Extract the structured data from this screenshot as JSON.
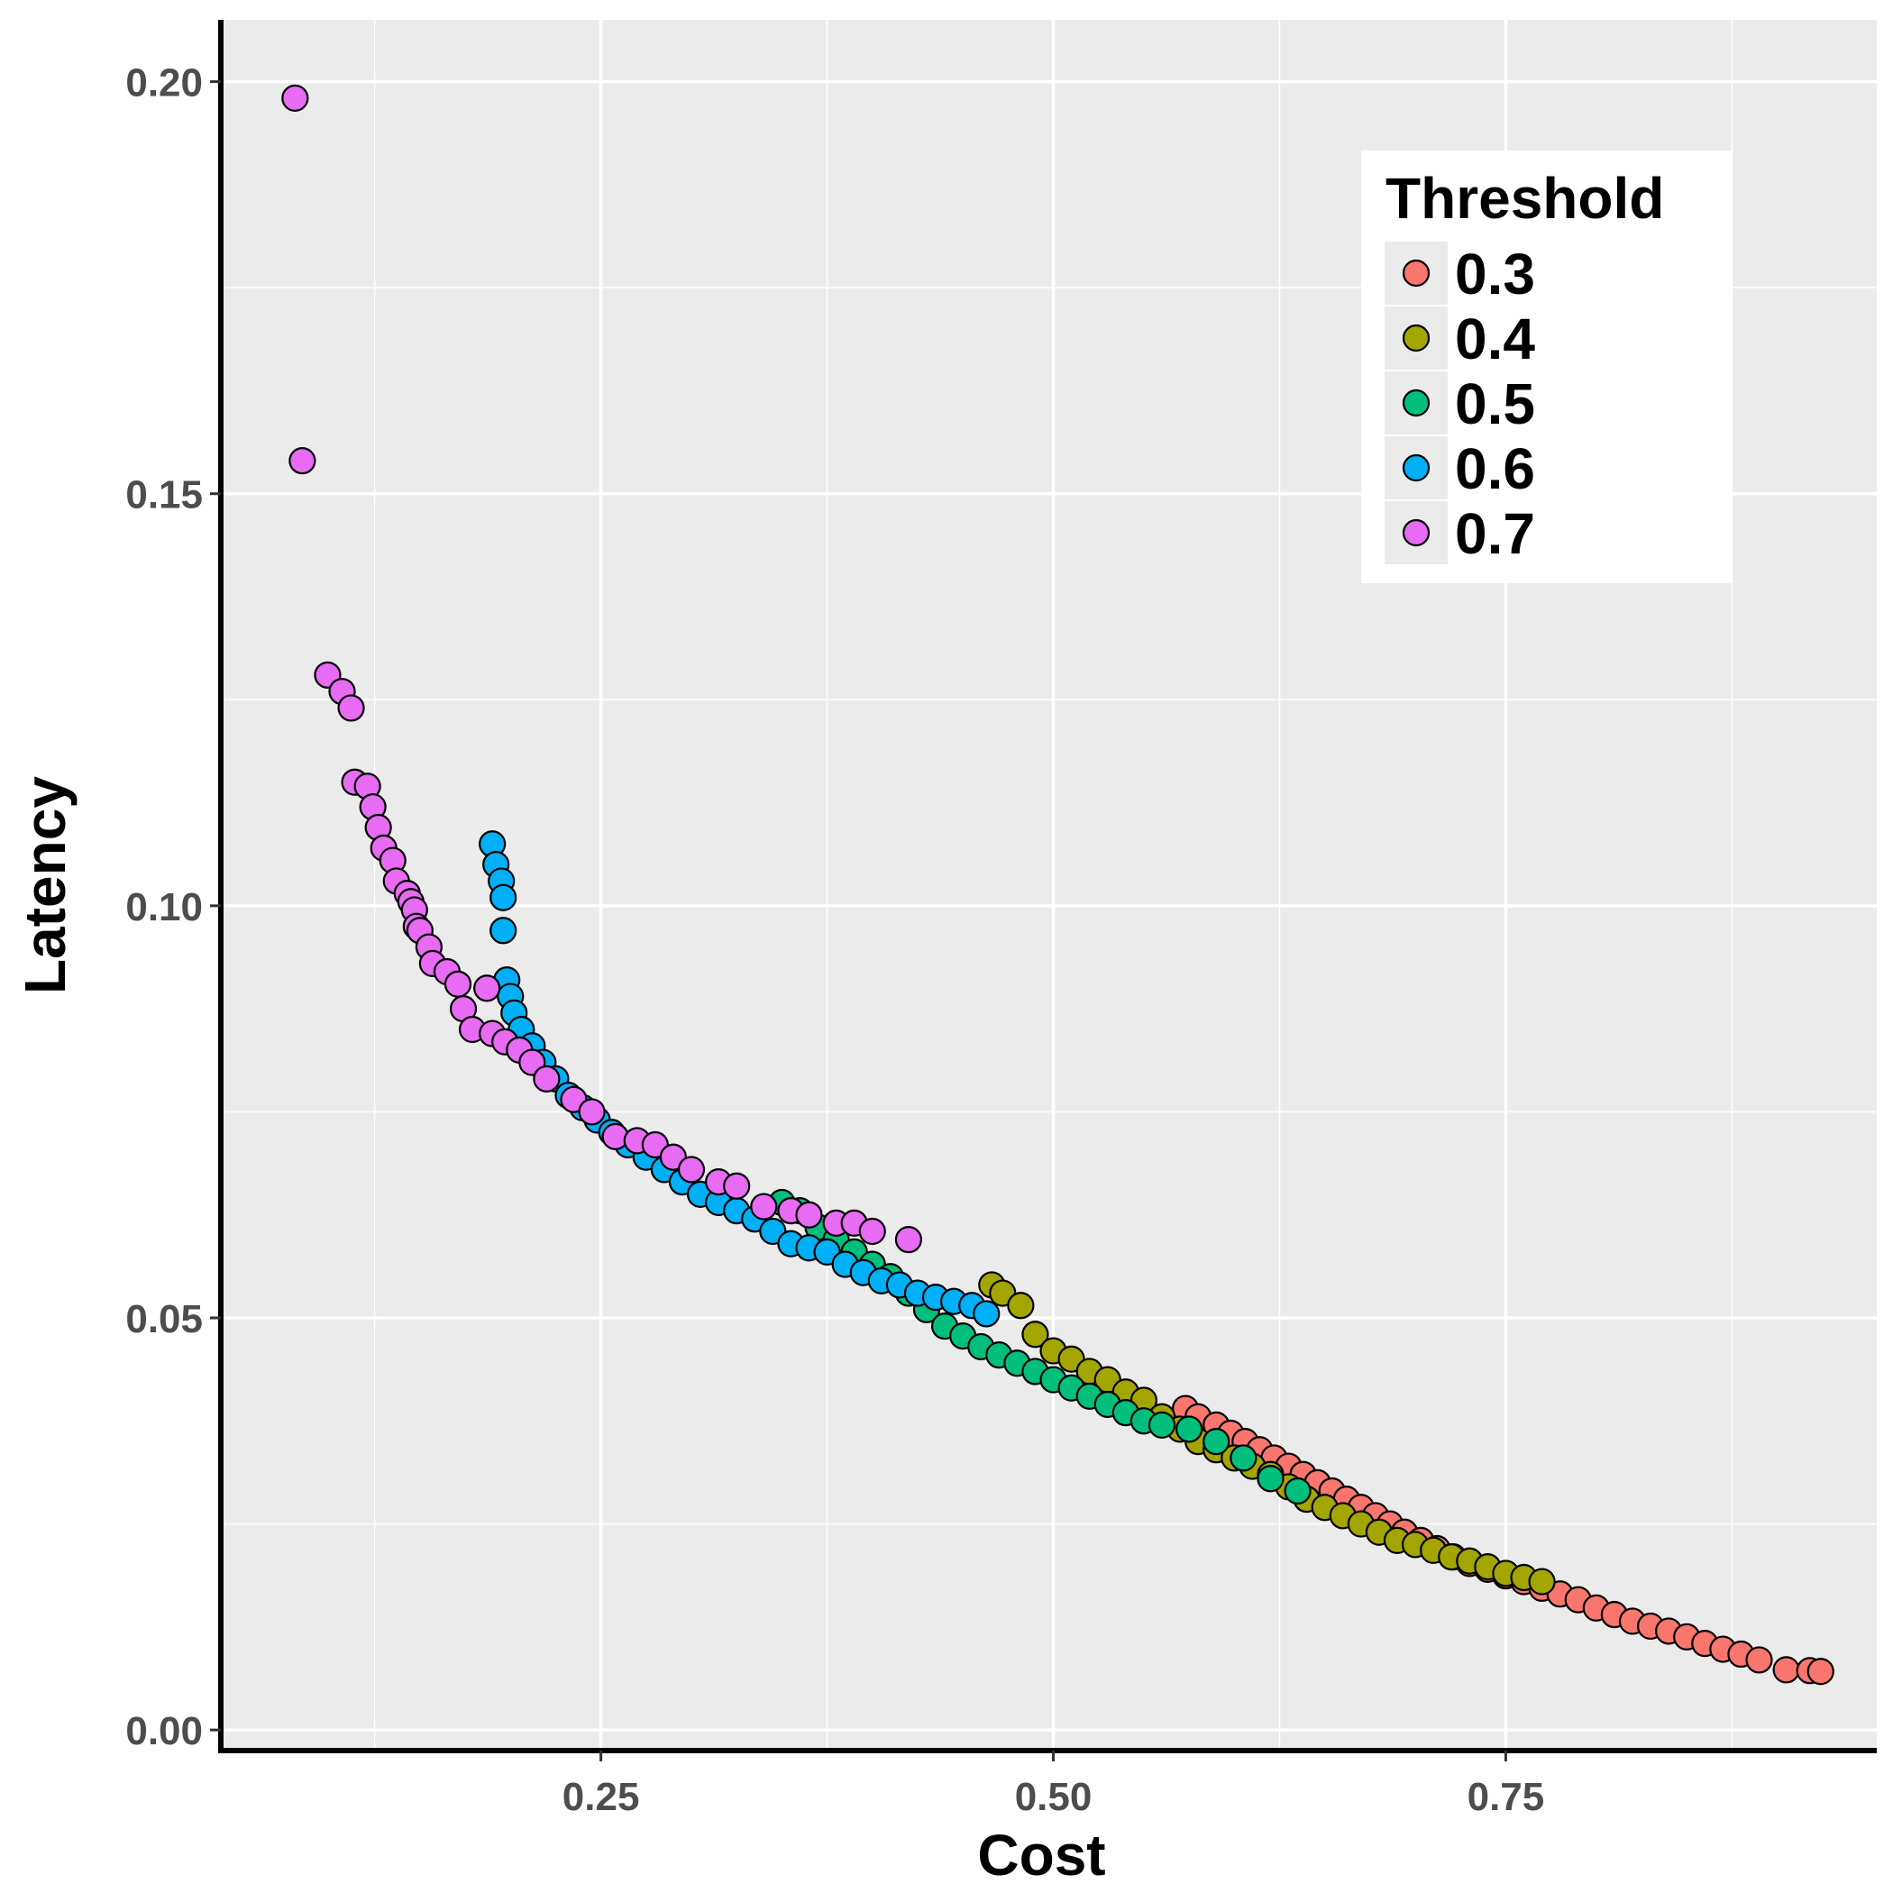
{
  "chart_data": {
    "type": "scatter",
    "title": "",
    "xlabel": "Cost",
    "ylabel": "Latency",
    "xlim": [
      0.04,
      0.955
    ],
    "ylim": [
      -0.0025,
      0.2075
    ],
    "x_ticks": [
      "0.25",
      "0.50",
      "0.75"
    ],
    "x_tick_values": [
      0.25,
      0.5,
      0.75
    ],
    "y_ticks": [
      "0.00",
      "0.05",
      "0.10",
      "0.15",
      "0.20"
    ],
    "y_tick_values": [
      0.0,
      0.05,
      0.1,
      0.15,
      0.2
    ],
    "grid": true,
    "legend": {
      "title": "Threshold",
      "position": "top-right"
    },
    "colors": {
      "panel": "#ebebeb",
      "grid": "#ffffff",
      "point_stroke": "#000000"
    },
    "series": [
      {
        "name": "0.3",
        "color": "#F8766D",
        "points": [
          [
            0.573,
            0.039
          ],
          [
            0.58,
            0.038
          ],
          [
            0.59,
            0.037
          ],
          [
            0.598,
            0.036
          ],
          [
            0.606,
            0.035
          ],
          [
            0.614,
            0.034
          ],
          [
            0.622,
            0.033
          ],
          [
            0.63,
            0.032
          ],
          [
            0.638,
            0.031
          ],
          [
            0.646,
            0.03
          ],
          [
            0.654,
            0.029
          ],
          [
            0.662,
            0.028
          ],
          [
            0.67,
            0.027
          ],
          [
            0.678,
            0.026
          ],
          [
            0.686,
            0.025
          ],
          [
            0.694,
            0.024
          ],
          [
            0.703,
            0.023
          ],
          [
            0.712,
            0.022
          ],
          [
            0.721,
            0.021
          ],
          [
            0.73,
            0.0202
          ],
          [
            0.74,
            0.0195
          ],
          [
            0.75,
            0.0187
          ],
          [
            0.76,
            0.018
          ],
          [
            0.77,
            0.0172
          ],
          [
            0.78,
            0.0165
          ],
          [
            0.79,
            0.0158
          ],
          [
            0.8,
            0.0148
          ],
          [
            0.81,
            0.014
          ],
          [
            0.82,
            0.0132
          ],
          [
            0.83,
            0.0126
          ],
          [
            0.84,
            0.012
          ],
          [
            0.85,
            0.0113
          ],
          [
            0.86,
            0.0105
          ],
          [
            0.87,
            0.0098
          ],
          [
            0.88,
            0.0092
          ],
          [
            0.89,
            0.0085
          ],
          [
            0.905,
            0.0073
          ],
          [
            0.918,
            0.0072
          ],
          [
            0.924,
            0.0071
          ]
        ]
      },
      {
        "name": "0.4",
        "color": "#A3A500",
        "points": [
          [
            0.466,
            0.054
          ],
          [
            0.472,
            0.053
          ],
          [
            0.482,
            0.0515
          ],
          [
            0.49,
            0.048
          ],
          [
            0.5,
            0.046
          ],
          [
            0.51,
            0.045
          ],
          [
            0.52,
            0.0435
          ],
          [
            0.53,
            0.0425
          ],
          [
            0.54,
            0.041
          ],
          [
            0.55,
            0.04
          ],
          [
            0.56,
            0.038
          ],
          [
            0.57,
            0.0365
          ],
          [
            0.58,
            0.035
          ],
          [
            0.59,
            0.034
          ],
          [
            0.6,
            0.033
          ],
          [
            0.61,
            0.032
          ],
          [
            0.62,
            0.031
          ],
          [
            0.63,
            0.0295
          ],
          [
            0.64,
            0.028
          ],
          [
            0.65,
            0.027
          ],
          [
            0.66,
            0.026
          ],
          [
            0.67,
            0.025
          ],
          [
            0.68,
            0.024
          ],
          [
            0.69,
            0.023
          ],
          [
            0.7,
            0.0225
          ],
          [
            0.71,
            0.0218
          ],
          [
            0.72,
            0.021
          ],
          [
            0.73,
            0.0205
          ],
          [
            0.74,
            0.0198
          ],
          [
            0.75,
            0.019
          ],
          [
            0.76,
            0.0185
          ],
          [
            0.77,
            0.018
          ]
        ]
      },
      {
        "name": "0.5",
        "color": "#00BF7D",
        "points": [
          [
            0.35,
            0.064
          ],
          [
            0.36,
            0.063
          ],
          [
            0.37,
            0.061
          ],
          [
            0.38,
            0.0595
          ],
          [
            0.39,
            0.058
          ],
          [
            0.4,
            0.0565
          ],
          [
            0.41,
            0.055
          ],
          [
            0.42,
            0.053
          ],
          [
            0.43,
            0.051
          ],
          [
            0.44,
            0.049
          ],
          [
            0.45,
            0.0478
          ],
          [
            0.46,
            0.0465
          ],
          [
            0.47,
            0.0455
          ],
          [
            0.48,
            0.0445
          ],
          [
            0.49,
            0.0435
          ],
          [
            0.5,
            0.0425
          ],
          [
            0.51,
            0.0415
          ],
          [
            0.52,
            0.0405
          ],
          [
            0.53,
            0.0395
          ],
          [
            0.54,
            0.0385
          ],
          [
            0.55,
            0.0375
          ],
          [
            0.56,
            0.037
          ],
          [
            0.575,
            0.0365
          ],
          [
            0.59,
            0.035
          ],
          [
            0.605,
            0.033
          ],
          [
            0.62,
            0.0305
          ],
          [
            0.635,
            0.029
          ]
        ]
      },
      {
        "name": "0.6",
        "color": "#00B0F6",
        "points": [
          [
            0.19,
            0.1075
          ],
          [
            0.192,
            0.105
          ],
          [
            0.195,
            0.103
          ],
          [
            0.196,
            0.101
          ],
          [
            0.196,
            0.097
          ],
          [
            0.198,
            0.091
          ],
          [
            0.2,
            0.089
          ],
          [
            0.202,
            0.087
          ],
          [
            0.206,
            0.085
          ],
          [
            0.212,
            0.083
          ],
          [
            0.218,
            0.081
          ],
          [
            0.225,
            0.079
          ],
          [
            0.232,
            0.077
          ],
          [
            0.24,
            0.0755
          ],
          [
            0.248,
            0.074
          ],
          [
            0.256,
            0.0725
          ],
          [
            0.265,
            0.071
          ],
          [
            0.275,
            0.0695
          ],
          [
            0.285,
            0.068
          ],
          [
            0.295,
            0.0665
          ],
          [
            0.305,
            0.065
          ],
          [
            0.315,
            0.064
          ],
          [
            0.325,
            0.063
          ],
          [
            0.335,
            0.062
          ],
          [
            0.345,
            0.0605
          ],
          [
            0.355,
            0.059
          ],
          [
            0.365,
            0.0585
          ],
          [
            0.375,
            0.058
          ],
          [
            0.385,
            0.0565
          ],
          [
            0.395,
            0.0555
          ],
          [
            0.405,
            0.0545
          ],
          [
            0.415,
            0.054
          ],
          [
            0.425,
            0.053
          ],
          [
            0.435,
            0.0525
          ],
          [
            0.445,
            0.052
          ],
          [
            0.455,
            0.0515
          ],
          [
            0.463,
            0.0505
          ]
        ]
      },
      {
        "name": "0.7",
        "color": "#E76BF3",
        "points": [
          [
            0.081,
            0.198
          ],
          [
            0.085,
            0.154
          ],
          [
            0.099,
            0.128
          ],
          [
            0.107,
            0.126
          ],
          [
            0.112,
            0.124
          ],
          [
            0.114,
            0.115
          ],
          [
            0.121,
            0.1145
          ],
          [
            0.124,
            0.112
          ],
          [
            0.127,
            0.1095
          ],
          [
            0.13,
            0.107
          ],
          [
            0.135,
            0.1055
          ],
          [
            0.137,
            0.103
          ],
          [
            0.143,
            0.1015
          ],
          [
            0.145,
            0.1005
          ],
          [
            0.147,
            0.0995
          ],
          [
            0.148,
            0.0975
          ],
          [
            0.15,
            0.097
          ],
          [
            0.155,
            0.095
          ],
          [
            0.157,
            0.093
          ],
          [
            0.165,
            0.092
          ],
          [
            0.171,
            0.0905
          ],
          [
            0.174,
            0.0875
          ],
          [
            0.179,
            0.085
          ],
          [
            0.187,
            0.09
          ],
          [
            0.19,
            0.0845
          ],
          [
            0.197,
            0.0835
          ],
          [
            0.205,
            0.0825
          ],
          [
            0.212,
            0.081
          ],
          [
            0.22,
            0.079
          ],
          [
            0.235,
            0.0765
          ],
          [
            0.245,
            0.075
          ],
          [
            0.258,
            0.072
          ],
          [
            0.27,
            0.0715
          ],
          [
            0.28,
            0.071
          ],
          [
            0.29,
            0.0695
          ],
          [
            0.3,
            0.068
          ],
          [
            0.315,
            0.0665
          ],
          [
            0.325,
            0.066
          ],
          [
            0.34,
            0.0635
          ],
          [
            0.355,
            0.063
          ],
          [
            0.365,
            0.0625
          ],
          [
            0.38,
            0.0615
          ],
          [
            0.39,
            0.0615
          ],
          [
            0.4,
            0.0605
          ],
          [
            0.42,
            0.0595
          ]
        ]
      }
    ]
  }
}
